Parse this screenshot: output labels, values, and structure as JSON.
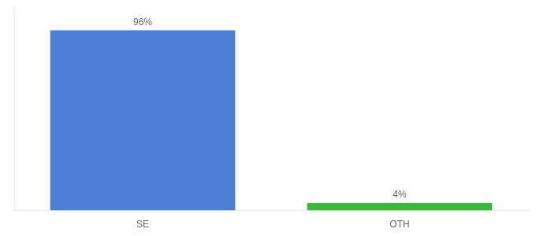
{
  "chart_data": {
    "type": "bar",
    "categories": [
      "SE",
      "OTH"
    ],
    "values": [
      96,
      4
    ],
    "value_labels": [
      "96%",
      "4%"
    ],
    "colors": [
      "#4d7fd4",
      "#3cb83c"
    ],
    "ylim": [
      0,
      108
    ],
    "data_labels": true,
    "tick_labels": "x",
    "grid": false
  }
}
